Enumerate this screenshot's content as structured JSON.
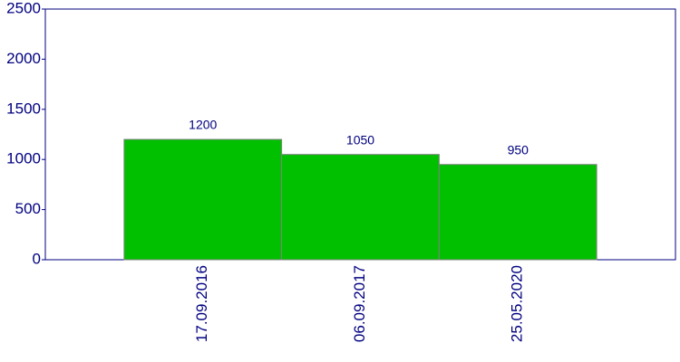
{
  "chart_data": {
    "type": "bar",
    "categories": [
      "17.09.2016",
      "06.09.2017",
      "25.05.2020"
    ],
    "values": [
      1200,
      1050,
      950
    ],
    "color": "#00c000",
    "ylim": [
      0,
      2500
    ],
    "yticks": [
      0,
      500,
      1000,
      1500,
      2000,
      2500
    ]
  }
}
